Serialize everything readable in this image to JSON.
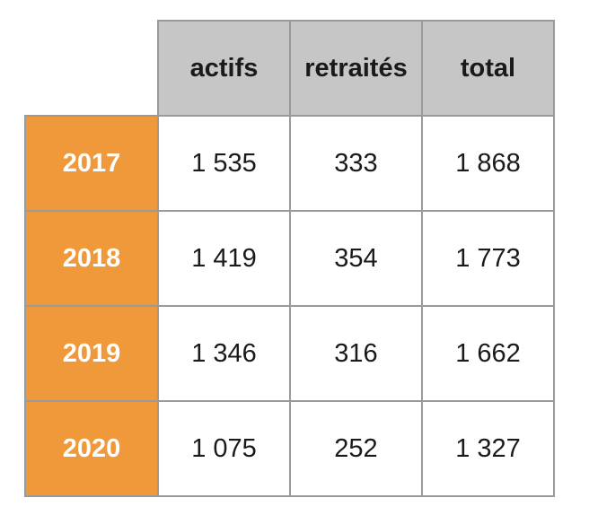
{
  "chart_data": {
    "type": "table",
    "columns": [
      "actifs",
      "retraités",
      "total"
    ],
    "rows": [
      {
        "year": "2017",
        "values": [
          "1535",
          "333",
          "1868"
        ]
      },
      {
        "year": "2018",
        "values": [
          "1419",
          "354",
          "1773"
        ]
      },
      {
        "year": "2019",
        "values": [
          "1346",
          "316",
          "1662"
        ]
      },
      {
        "year": "2020",
        "values": [
          "1075",
          "252",
          "1327"
        ]
      }
    ],
    "display": {
      "columns": [
        "actifs",
        "retraités",
        "total"
      ],
      "rows": [
        {
          "year": "2017",
          "values": [
            "1 535",
            "333",
            "1 868"
          ]
        },
        {
          "year": "2018",
          "values": [
            "1 419",
            "354",
            "1 773"
          ]
        },
        {
          "year": "2019",
          "values": [
            "1 346",
            "316",
            "1 662"
          ]
        },
        {
          "year": "2020",
          "values": [
            "1 075",
            "252",
            "1 327"
          ]
        }
      ]
    },
    "colors": {
      "header_bg": "#c6c6c6",
      "year_bg": "#f0993a",
      "year_text": "#ffffff",
      "border": "#9a9a9a"
    }
  }
}
